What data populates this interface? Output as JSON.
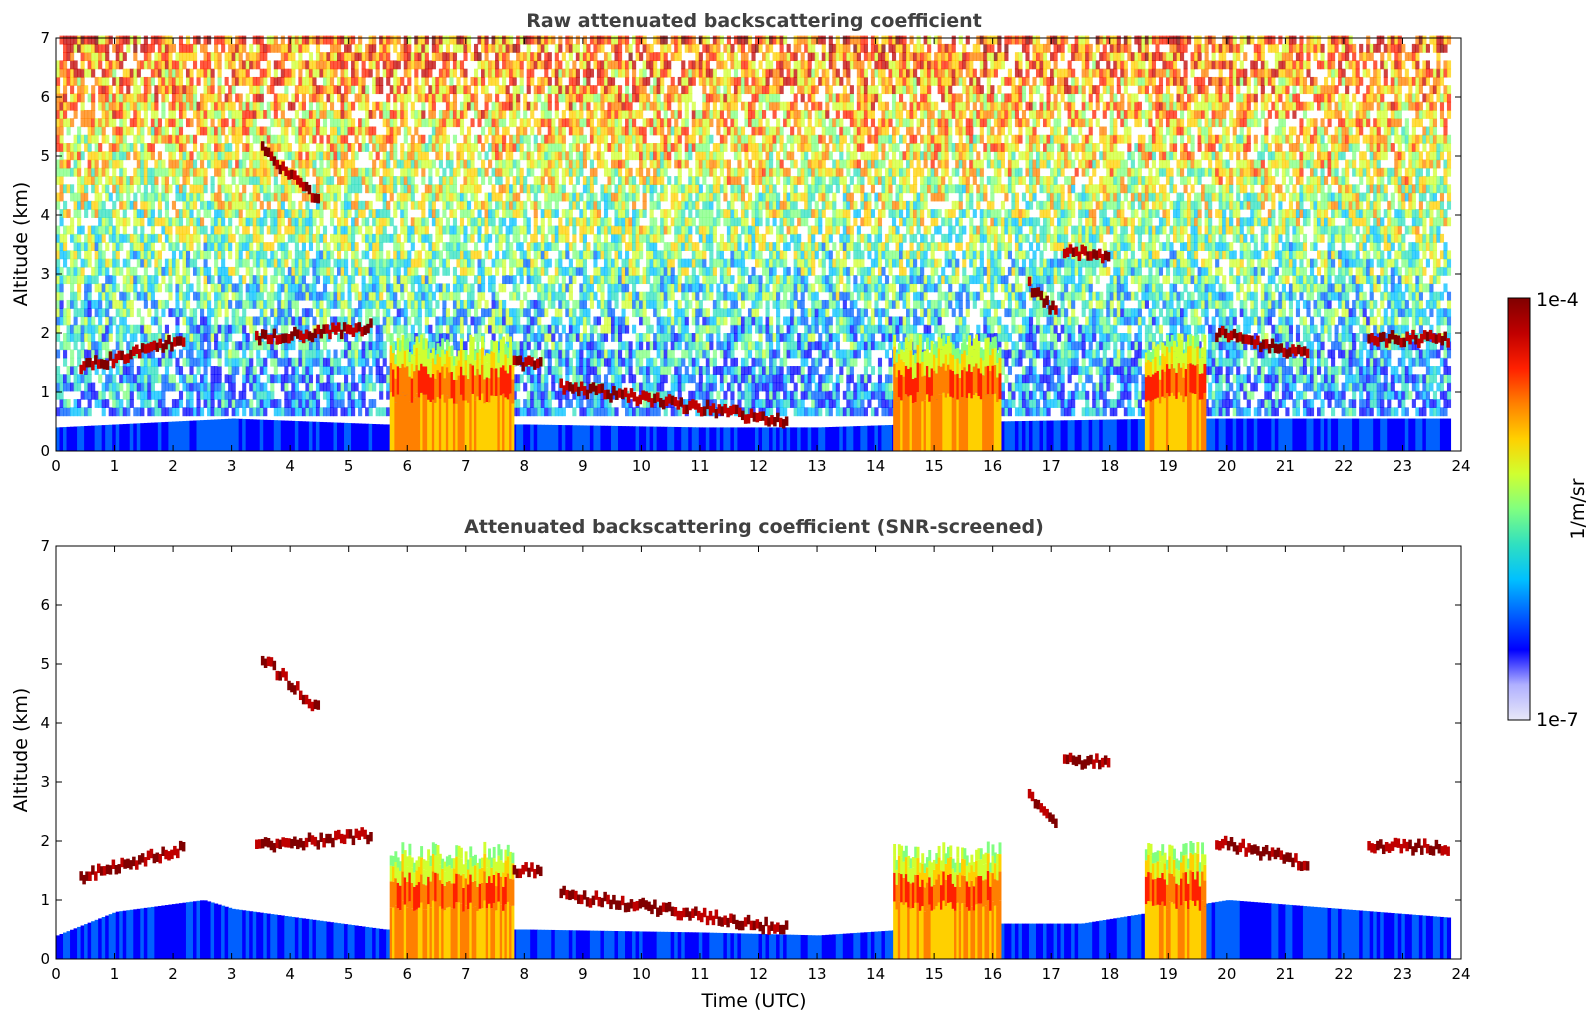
{
  "chart_data": [
    {
      "type": "heatmap",
      "title": "Raw attenuated backscattering coefficient",
      "xlabel": "",
      "ylabel": "Altitude (km)",
      "xlim": [
        0,
        24
      ],
      "ylim": [
        0,
        7
      ],
      "xticks": [
        "0",
        "1",
        "2",
        "3",
        "4",
        "5",
        "6",
        "7",
        "8",
        "9",
        "10",
        "11",
        "12",
        "13",
        "14",
        "15",
        "16",
        "17",
        "18",
        "19",
        "20",
        "21",
        "22",
        "23",
        "24"
      ],
      "yticks": [
        "0",
        "1",
        "2",
        "3",
        "4",
        "5",
        "6",
        "7"
      ],
      "features": {
        "boundary_layer": [
          [
            0,
            0.4
          ],
          [
            3,
            0.55
          ],
          [
            5.6,
            0.45
          ],
          [
            8,
            0.45
          ],
          [
            11,
            0.4
          ],
          [
            13,
            0.4
          ],
          [
            16,
            0.5
          ],
          [
            19,
            0.55
          ],
          [
            23.8,
            0.55
          ]
        ],
        "dense_cloud_periods": [
          [
            5.7,
            7.8
          ],
          [
            14.3,
            16.1
          ],
          [
            18.6,
            19.6
          ]
        ],
        "cloud_layers": [
          {
            "t0": 0.4,
            "t1": 2.2,
            "h0": 1.4,
            "h1": 1.9
          },
          {
            "t0": 3.4,
            "t1": 5.4,
            "h0": 1.9,
            "h1": 2.1
          },
          {
            "t0": 3.5,
            "t1": 4.5,
            "h0": 5.1,
            "h1": 4.2
          },
          {
            "t0": 7.8,
            "t1": 8.3,
            "h0": 1.5,
            "h1": 1.5
          },
          {
            "t0": 8.6,
            "t1": 12.5,
            "h0": 1.1,
            "h1": 0.5
          },
          {
            "t0": 16.6,
            "t1": 17.1,
            "h0": 2.8,
            "h1": 2.3
          },
          {
            "t0": 17.2,
            "t1": 18.0,
            "h0": 3.4,
            "h1": 3.3
          },
          {
            "t0": 19.8,
            "t1": 21.4,
            "h0": 2.0,
            "h1": 1.6
          },
          {
            "t0": 22.4,
            "t1": 23.8,
            "h0": 1.9,
            "h1": 1.9
          }
        ],
        "noise_top": true
      }
    },
    {
      "type": "heatmap",
      "title": "Attenuated backscattering coefficient (SNR-screened)",
      "xlabel": "Time (UTC)",
      "ylabel": "Altitude (km)",
      "xlim": [
        0,
        24
      ],
      "ylim": [
        0,
        7
      ],
      "xticks": [
        "0",
        "1",
        "2",
        "3",
        "4",
        "5",
        "6",
        "7",
        "8",
        "9",
        "10",
        "11",
        "12",
        "13",
        "14",
        "15",
        "16",
        "17",
        "18",
        "19",
        "20",
        "21",
        "22",
        "23",
        "24"
      ],
      "yticks": [
        "0",
        "1",
        "2",
        "3",
        "4",
        "5",
        "6",
        "7"
      ],
      "features": {
        "boundary_layer": [
          [
            0,
            0.4
          ],
          [
            1,
            0.8
          ],
          [
            2.5,
            1.0
          ],
          [
            3,
            0.85
          ],
          [
            5.6,
            0.5
          ],
          [
            8,
            0.5
          ],
          [
            11,
            0.45
          ],
          [
            13,
            0.4
          ],
          [
            16,
            0.6
          ],
          [
            17.5,
            0.6
          ],
          [
            20,
            1.0
          ],
          [
            23.8,
            0.7
          ]
        ],
        "dense_cloud_periods": [
          [
            5.7,
            7.8
          ],
          [
            14.3,
            16.1
          ],
          [
            18.6,
            19.6
          ]
        ],
        "cloud_layers": [
          {
            "t0": 0.4,
            "t1": 2.2,
            "h0": 1.4,
            "h1": 1.9
          },
          {
            "t0": 3.4,
            "t1": 5.4,
            "h0": 1.9,
            "h1": 2.1
          },
          {
            "t0": 3.5,
            "t1": 4.5,
            "h0": 5.1,
            "h1": 4.2
          },
          {
            "t0": 7.8,
            "t1": 8.3,
            "h0": 1.5,
            "h1": 1.5
          },
          {
            "t0": 8.6,
            "t1": 12.5,
            "h0": 1.1,
            "h1": 0.5
          },
          {
            "t0": 16.6,
            "t1": 17.1,
            "h0": 2.8,
            "h1": 2.3
          },
          {
            "t0": 17.2,
            "t1": 18.0,
            "h0": 3.4,
            "h1": 3.3
          },
          {
            "t0": 19.8,
            "t1": 21.4,
            "h0": 2.0,
            "h1": 1.6
          },
          {
            "t0": 22.4,
            "t1": 23.8,
            "h0": 1.9,
            "h1": 1.9
          }
        ],
        "noise_top": false
      }
    }
  ],
  "colorbar": {
    "label": "1/m/sr",
    "max_label": "1e-4",
    "min_label": "1e-7",
    "colors": [
      "#e8e8f8",
      "#b0b0ff",
      "#0000ff",
      "#0060ff",
      "#00c0ff",
      "#30e0c0",
      "#80ff80",
      "#d0ff30",
      "#ffd000",
      "#ff8000",
      "#ff2000",
      "#c00000",
      "#800000"
    ]
  }
}
